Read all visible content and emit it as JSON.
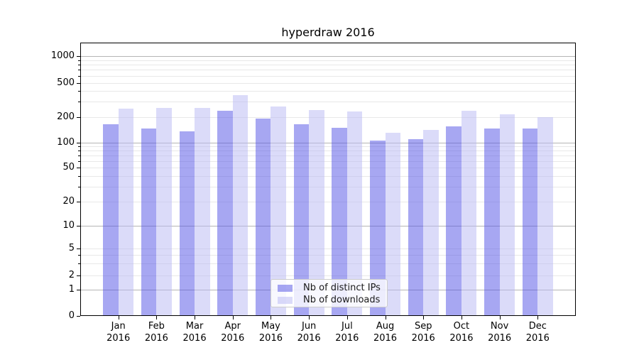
{
  "title": "hyperdraw 2016",
  "legend": {
    "items": [
      {
        "label": "Nb of distinct IPs",
        "color": "#4f4fe5"
      },
      {
        "label": "Nb of downloads",
        "color": "#b7b7f3"
      }
    ]
  },
  "chart_data": {
    "type": "bar",
    "title": "hyperdraw 2016",
    "categories": [
      "Jan 2016",
      "Feb 2016",
      "Mar 2016",
      "Apr 2016",
      "May 2016",
      "Jun 2016",
      "Jul 2016",
      "Aug 2016",
      "Sep 2016",
      "Oct 2016",
      "Nov 2016",
      "Dec 2016"
    ],
    "x_tick_line1": [
      "Jan",
      "Feb",
      "Mar",
      "Apr",
      "May",
      "Jun",
      "Jul",
      "Aug",
      "Sep",
      "Oct",
      "Nov",
      "Dec"
    ],
    "x_tick_line2": "2016",
    "series": [
      {
        "name": "Nb of distinct IPs",
        "color": "#4f4fe5",
        "alpha": 0.5,
        "values": [
          165,
          145,
          135,
          235,
          190,
          165,
          150,
          105,
          110,
          155,
          145,
          145
        ]
      },
      {
        "name": "Nb of downloads",
        "color": "#b7b7f3",
        "alpha": 0.5,
        "values": [
          250,
          255,
          255,
          360,
          265,
          240,
          230,
          130,
          140,
          235,
          215,
          200
        ]
      }
    ],
    "yscale": "symlog",
    "y_ticks": [
      0,
      1,
      2,
      5,
      10,
      20,
      50,
      100,
      200,
      500,
      1000
    ],
    "y_major_gridlines": [
      1,
      10,
      100,
      1000
    ],
    "y_minor_gridlines": [
      2,
      3,
      4,
      5,
      20,
      30,
      40,
      50,
      60,
      70,
      80,
      90,
      200,
      300,
      400,
      500,
      600,
      700,
      800,
      900
    ],
    "ylim": [
      0,
      1400
    ],
    "grid": true,
    "legend_position": "lower center",
    "xlabel": "",
    "ylabel": ""
  }
}
